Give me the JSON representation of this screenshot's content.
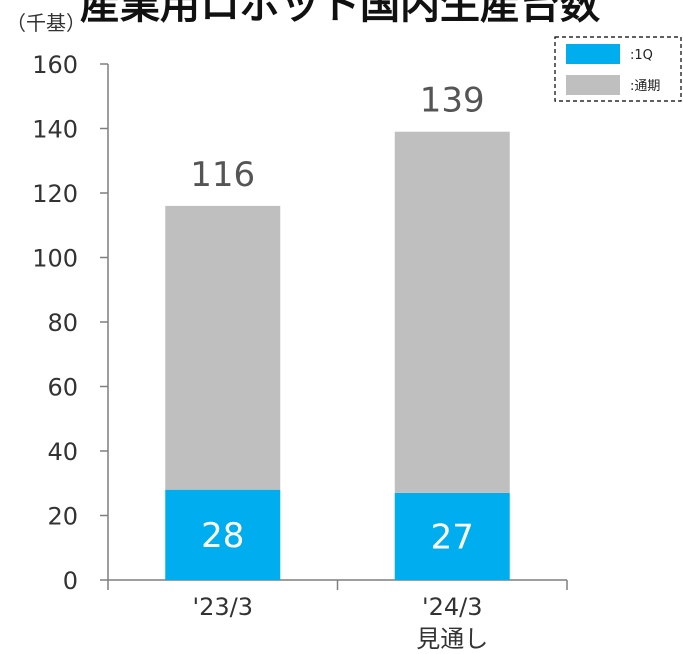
{
  "chart_data": {
    "type": "bar",
    "stacked": true,
    "title": "産業用ロボット国内生産台数",
    "unit": "（千基）",
    "categories": [
      "'23/3",
      "'24/3"
    ],
    "category_sublabels": [
      "",
      "見通し"
    ],
    "series": [
      {
        "name": ":1Q",
        "values": [
          28,
          27
        ]
      },
      {
        "name": ":通期",
        "values": [
          88,
          112
        ]
      }
    ],
    "totals": [
      116,
      139
    ],
    "ylim": [
      0,
      160
    ],
    "yticks": [
      0,
      20,
      40,
      60,
      80,
      100,
      120,
      140,
      160
    ],
    "grid": false,
    "legend_position": "top-right",
    "colors": {
      "q1": "#00AEEF",
      "annual": "#BFBFBF",
      "axis": "#7F7F7F"
    }
  }
}
